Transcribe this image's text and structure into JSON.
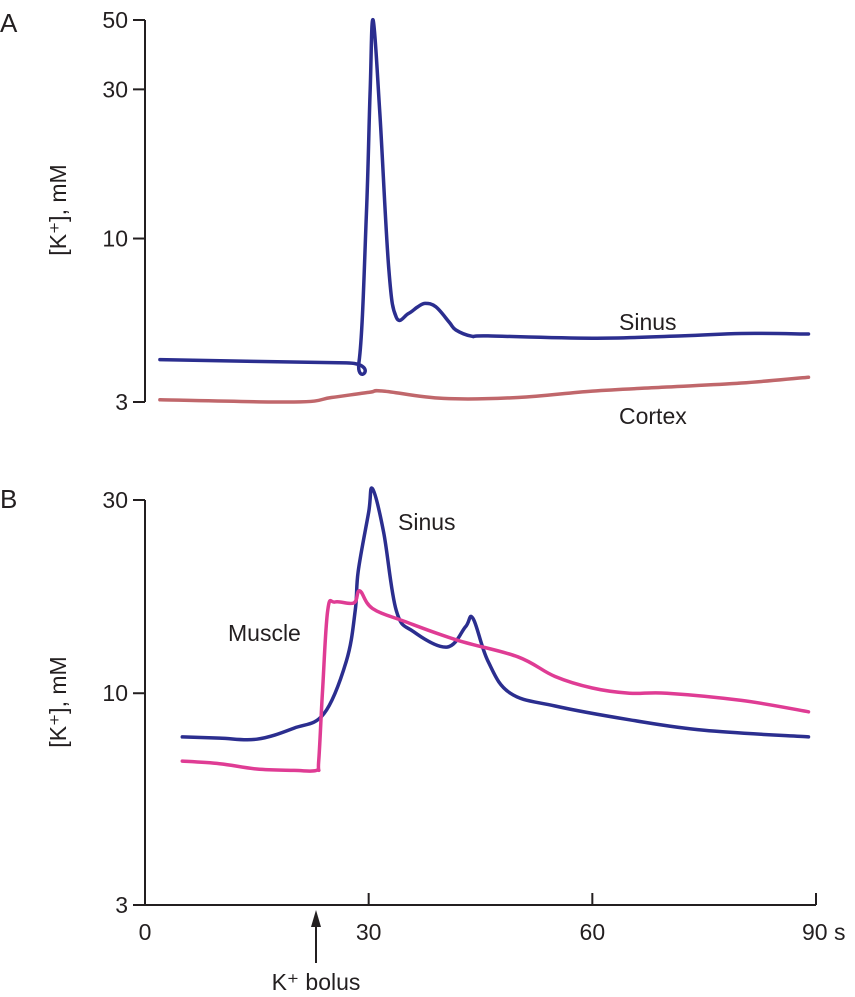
{
  "chart_data": [
    {
      "panel": "A",
      "type": "line",
      "title": "",
      "xlabel": "",
      "ylabel": "[K⁺], mM",
      "yscale": "log",
      "ylim": [
        3,
        50
      ],
      "yticks": [
        "3",
        "10",
        "30",
        "50"
      ],
      "series": [
        {
          "name": "Sinus",
          "color": "#2b2e8f",
          "points": [
            [
              2,
              4.1
            ],
            [
              27,
              4.0
            ],
            [
              28.7,
              4.03
            ],
            [
              29.7,
              12
            ],
            [
              30.2,
              30
            ],
            [
              30.6,
              50
            ],
            [
              31.5,
              25
            ],
            [
              32.7,
              8
            ],
            [
              33.7,
              5.6
            ],
            [
              35.3,
              5.75
            ],
            [
              36.6,
              6.05
            ],
            [
              37.6,
              6.2
            ],
            [
              39,
              6.05
            ],
            [
              40.8,
              5.4
            ],
            [
              41.7,
              5.1
            ],
            [
              43.8,
              4.87
            ],
            [
              46,
              4.88
            ],
            [
              60,
              4.8
            ],
            [
              72,
              4.88
            ],
            [
              80,
              4.97
            ],
            [
              89,
              4.95
            ]
          ]
        },
        {
          "name": "Cortex",
          "color": "#c0676b",
          "points": [
            [
              2,
              3.05
            ],
            [
              20,
              3.0
            ],
            [
              25,
              3.1
            ],
            [
              30,
              3.22
            ],
            [
              32,
              3.25
            ],
            [
              40,
              3.08
            ],
            [
              50,
              3.1
            ],
            [
              60,
              3.25
            ],
            [
              70,
              3.35
            ],
            [
              80,
              3.45
            ],
            [
              89,
              3.6
            ]
          ]
        }
      ]
    },
    {
      "panel": "B",
      "type": "line",
      "title": "",
      "xlabel": "",
      "ylabel": "[K⁺], mM",
      "yscale": "log",
      "ylim": [
        3,
        30
      ],
      "xlim": [
        0,
        90
      ],
      "xticks": [
        "0",
        "30",
        "60",
        "90 s"
      ],
      "yticks": [
        "3",
        "10",
        "30"
      ],
      "annotation": "K⁺ bolus",
      "annotation_x": 23,
      "series": [
        {
          "name": "Sinus",
          "color": "#2b2e8f",
          "points": [
            [
              5,
              7.8
            ],
            [
              10,
              7.75
            ],
            [
              15,
              7.7
            ],
            [
              20,
              8.2
            ],
            [
              24,
              8.9
            ],
            [
              27,
              12
            ],
            [
              28.2,
              16
            ],
            [
              28.6,
              20
            ],
            [
              30,
              28
            ],
            [
              30.5,
              32
            ],
            [
              32,
              25
            ],
            [
              33.7,
              16
            ],
            [
              36,
              14.2
            ],
            [
              40.5,
              13.0
            ],
            [
              43,
              14.6
            ],
            [
              44,
              15.3
            ],
            [
              46,
              12
            ],
            [
              49,
              10
            ],
            [
              55,
              9.3
            ],
            [
              65,
              8.6
            ],
            [
              75,
              8.1
            ],
            [
              89,
              7.8
            ]
          ]
        },
        {
          "name": "Muscle",
          "color": "#df3c94",
          "points": [
            [
              5,
              6.8
            ],
            [
              10,
              6.7
            ],
            [
              15,
              6.5
            ],
            [
              20,
              6.45
            ],
            [
              23,
              6.45
            ],
            [
              23.3,
              6.8
            ],
            [
              23.8,
              10
            ],
            [
              24.5,
              16
            ],
            [
              25.5,
              16.8
            ],
            [
              28,
              16.7
            ],
            [
              28.8,
              17.9
            ],
            [
              30.5,
              16.2
            ],
            [
              35,
              15
            ],
            [
              42,
              13.5
            ],
            [
              50,
              12.3
            ],
            [
              55,
              11
            ],
            [
              60,
              10.3
            ],
            [
              65,
              10.0
            ],
            [
              70,
              10.0
            ],
            [
              80,
              9.6
            ],
            [
              89,
              9.0
            ]
          ]
        }
      ]
    }
  ],
  "panel_labels": {
    "a": "A",
    "b": "B"
  },
  "axis_titles": {
    "a_y": "[K⁺], mM",
    "b_y": "[K⁺], mM"
  },
  "series_labels": {
    "a_sinus": "Sinus",
    "a_cortex": "Cortex",
    "b_sinus": "Sinus",
    "b_muscle": "Muscle"
  },
  "ticks": {
    "a_y": [
      "3",
      "10",
      "30",
      "50"
    ],
    "b_y": [
      "3",
      "10",
      "30"
    ],
    "x": [
      "0",
      "30",
      "60",
      "90 s"
    ]
  },
  "annotation": {
    "text": "K⁺ bolus"
  }
}
